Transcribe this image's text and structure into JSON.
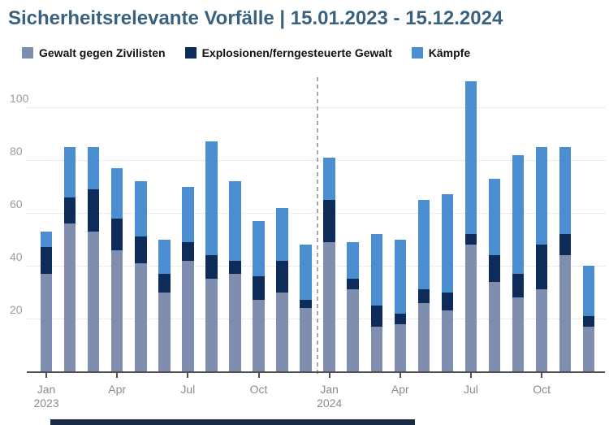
{
  "title": "Sicherheitsrelevante Vorfälle | 15.01.2023 - 15.12.2024",
  "legend": [
    {
      "label": "Gewalt gegen Zivilisten",
      "color": "#7f8eae"
    },
    {
      "label": "Explosionen/ferngesteuerte Gewalt",
      "color": "#0e2c59"
    },
    {
      "label": "Kämpfe",
      "color": "#4a8dd0"
    }
  ],
  "colors": {
    "title": "#3a627f",
    "axis_line": "#4f4f4f",
    "axis_label": "#8c8c8c",
    "ytick_label": "#9a9a9a",
    "gridline": "#d9d9d9",
    "separator": "#a6a6a6",
    "footer_bar": "#1b2a47"
  },
  "chart_data": {
    "type": "bar",
    "stacked": true,
    "title": "Sicherheitsrelevante Vorfälle | 15.01.2023 - 15.12.2024",
    "categories": [
      "Jan 2023",
      "Feb 2023",
      "Mär 2023",
      "Apr 2023",
      "Mai 2023",
      "Jun 2023",
      "Jul 2023",
      "Aug 2023",
      "Sep 2023",
      "Okt 2023",
      "Nov 2023",
      "Dez 2023",
      "Jan 2024",
      "Feb 2024",
      "Mär 2024",
      "Apr 2024",
      "Mai 2024",
      "Jun 2024",
      "Jul 2024",
      "Aug 2024",
      "Sep 2024",
      "Okt 2024",
      "Nov 2024",
      "Dez 2024"
    ],
    "series": [
      {
        "name": "Gewalt gegen Zivilisten",
        "color": "#7f8eae",
        "values": [
          37,
          56,
          53,
          46,
          41,
          30,
          42,
          35,
          37,
          27,
          30,
          24,
          49,
          31,
          17,
          18,
          26,
          23,
          48,
          34,
          28,
          31,
          44,
          17
        ]
      },
      {
        "name": "Explosionen/ferngesteuerte Gewalt",
        "color": "#0e2c59",
        "values": [
          10,
          10,
          16,
          12,
          10,
          7,
          7,
          9,
          5,
          9,
          12,
          3,
          16,
          4,
          8,
          4,
          5,
          7,
          4,
          10,
          9,
          17,
          8,
          4
        ]
      },
      {
        "name": "Kämpfe",
        "color": "#4a8dd0",
        "values": [
          6,
          19,
          16,
          19,
          21,
          13,
          21,
          43,
          30,
          21,
          20,
          21,
          16,
          14,
          27,
          28,
          34,
          37,
          58,
          29,
          45,
          37,
          33,
          19
        ]
      }
    ],
    "totals": [
      53,
      85,
      85,
      77,
      72,
      50,
      70,
      87,
      72,
      57,
      62,
      48,
      81,
      49,
      52,
      50,
      65,
      67,
      110,
      73,
      82,
      85,
      85,
      40
    ],
    "ylim": [
      0,
      111
    ],
    "yticks": [
      20,
      40,
      60,
      80,
      100
    ],
    "grid": "dotted horizontal",
    "legend_position": "top",
    "xticks": [
      {
        "label": "Jan",
        "sub": "2023",
        "month_index": 0
      },
      {
        "label": "Apr",
        "sub": "",
        "month_index": 3
      },
      {
        "label": "Jul",
        "sub": "",
        "month_index": 6
      },
      {
        "label": "Oct",
        "sub": "",
        "month_index": 9
      },
      {
        "label": "Jan",
        "sub": "2024",
        "month_index": 12
      },
      {
        "label": "Apr",
        "sub": "",
        "month_index": 15
      },
      {
        "label": "Jul",
        "sub": "",
        "month_index": 18
      },
      {
        "label": "Oct",
        "sub": "",
        "month_index": 21
      }
    ],
    "separator_after_index": 11
  }
}
